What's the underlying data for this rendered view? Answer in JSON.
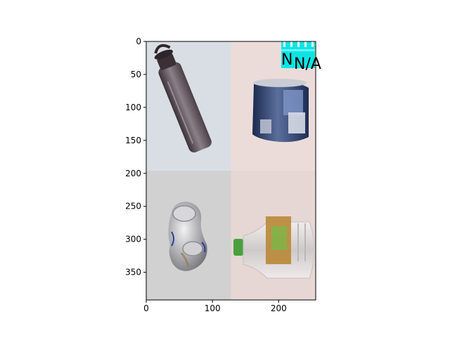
{
  "chart_data": {
    "type": "image",
    "xlim": [
      0,
      256
    ],
    "ylim": [
      392,
      0
    ],
    "xticks": [
      0,
      100,
      200
    ],
    "yticks": [
      0,
      50,
      100,
      150,
      200,
      250,
      300,
      350
    ],
    "grid": false,
    "panels": [
      {
        "name": "bottle",
        "extent": [
          0,
          128,
          0,
          196
        ],
        "background": "#d9dee4"
      },
      {
        "name": "can",
        "extent": [
          128,
          256,
          0,
          196
        ],
        "background": "#ecdcd9"
      },
      {
        "name": "crushed-can",
        "extent": [
          0,
          128,
          196,
          392
        ],
        "background": "#d2d1d1"
      },
      {
        "name": "plastic-bottle",
        "extent": [
          128,
          256,
          196,
          392
        ],
        "background": "#e6d6d4"
      }
    ],
    "annotation": {
      "text": "N/A",
      "prefix": "N",
      "x": 210,
      "y": 30,
      "color": "#00e5e5"
    }
  }
}
